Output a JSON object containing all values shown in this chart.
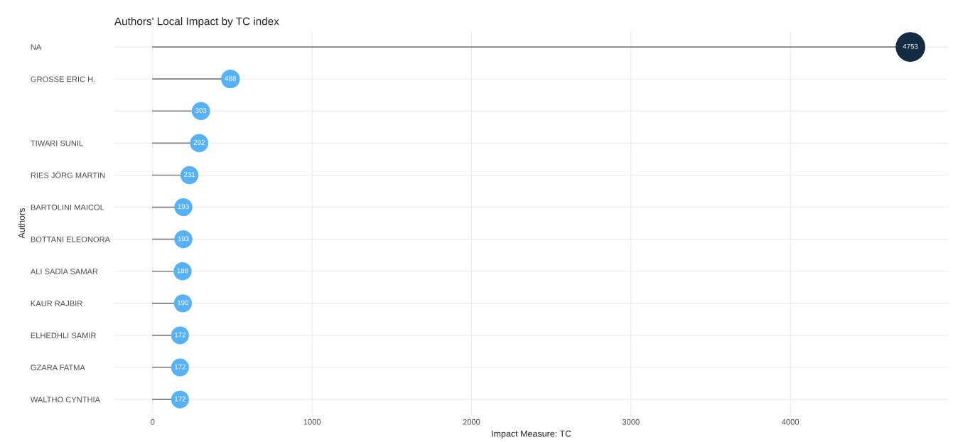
{
  "chart_data": {
    "type": "lollipop",
    "title": "Authors' Local Impact by TC index",
    "xlabel": "Impact Measure: TC",
    "ylabel": "Authors",
    "orientation": "horizontal",
    "categories": [
      "NA",
      "GROSSE ERIC H.",
      null,
      "TIWARI SUNIL",
      "RIES JÖRG MARTIN",
      "BARTOLINI MAICOL",
      "BOTTANI ELEONORA",
      "ALI SADIA SAMAR",
      "KAUR RAJBIR",
      "ELHEDHLI SAMIR",
      "GZARA FATMA",
      "WALTHO CYNTHIA"
    ],
    "values": [
      4753,
      488,
      303,
      292,
      231,
      193,
      193,
      188,
      190,
      172,
      172,
      172
    ],
    "colors": [
      "#132b43",
      "#56b1f7",
      "#56b1f7",
      "#56b1f7",
      "#56b1f7",
      "#56b1f7",
      "#56b1f7",
      "#56b1f7",
      "#56b1f7",
      "#56b1f7",
      "#56b1f7",
      "#56b1f7"
    ],
    "sizes": [
      1,
      0.4,
      0.38,
      0.38,
      0.37,
      0.37,
      0.37,
      0.37,
      0.37,
      0.36,
      0.36,
      0.36
    ],
    "data_labels": true,
    "xlim": [
      -240,
      4990
    ],
    "xticks": [
      0,
      1000,
      2000,
      3000,
      4000
    ],
    "grid": true,
    "legend": false
  }
}
